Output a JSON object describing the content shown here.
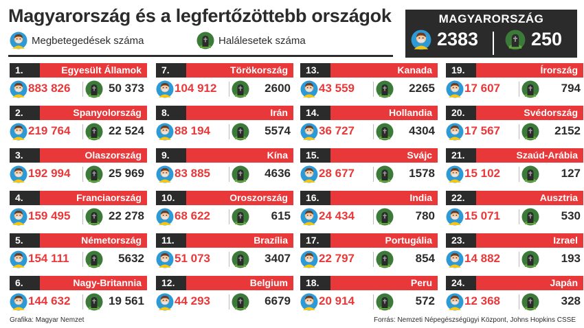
{
  "title": "Magyarország és a legfertőzöttebb országok",
  "legend": {
    "cases_label": "Megbetegedések száma",
    "deaths_label": "Halálesetek száma"
  },
  "hungary": {
    "title": "MAGYARORSZÁG",
    "cases": "2383",
    "deaths": "250"
  },
  "colors": {
    "accent_red": "#e8383a",
    "dark": "#2b2b2b",
    "person_icon_bg": "#2d9ad6",
    "grave_icon_bg": "#3c7a3a"
  },
  "icons": {
    "cases": "sick-person-icon",
    "deaths": "gravestone-icon"
  },
  "countries": [
    {
      "rank": "1.",
      "name": "Egyesült Államok",
      "cases": "883 826",
      "deaths": "50 373"
    },
    {
      "rank": "2.",
      "name": "Spanyolország",
      "cases": "219 764",
      "deaths": "22 524"
    },
    {
      "rank": "3.",
      "name": "Olaszország",
      "cases": "192 994",
      "deaths": "25 969"
    },
    {
      "rank": "4.",
      "name": "Franciaország",
      "cases": "159 495",
      "deaths": "22 278"
    },
    {
      "rank": "5.",
      "name": "Németország",
      "cases": "154 111",
      "deaths": "5632"
    },
    {
      "rank": "6.",
      "name": "Nagy-Britannia",
      "cases": "144 632",
      "deaths": "19 561"
    },
    {
      "rank": "7.",
      "name": "Törökország",
      "cases": "104 912",
      "deaths": "2600"
    },
    {
      "rank": "8.",
      "name": "Irán",
      "cases": "88 194",
      "deaths": "5574"
    },
    {
      "rank": "9.",
      "name": "Kína",
      "cases": "83 885",
      "deaths": "4636"
    },
    {
      "rank": "10.",
      "name": "Oroszország",
      "cases": "68 622",
      "deaths": "615"
    },
    {
      "rank": "11.",
      "name": "Brazília",
      "cases": "51 073",
      "deaths": "3407"
    },
    {
      "rank": "12.",
      "name": "Belgium",
      "cases": "44 293",
      "deaths": "6679"
    },
    {
      "rank": "13.",
      "name": "Kanada",
      "cases": "43 559",
      "deaths": "2265"
    },
    {
      "rank": "14.",
      "name": "Hollandia",
      "cases": "36 727",
      "deaths": "4304"
    },
    {
      "rank": "15.",
      "name": "Svájc",
      "cases": "28 677",
      "deaths": "1578"
    },
    {
      "rank": "16.",
      "name": "India",
      "cases": "24 434",
      "deaths": "780"
    },
    {
      "rank": "17.",
      "name": "Portugália",
      "cases": "22 797",
      "deaths": "854"
    },
    {
      "rank": "18.",
      "name": "Peru",
      "cases": "20 914",
      "deaths": "572"
    },
    {
      "rank": "19.",
      "name": "Írország",
      "cases": "17 607",
      "deaths": "794"
    },
    {
      "rank": "20.",
      "name": "Svédország",
      "cases": "17 567",
      "deaths": "2152"
    },
    {
      "rank": "21.",
      "name": "Szaúd-Arábia",
      "cases": "15 102",
      "deaths": "127"
    },
    {
      "rank": "22.",
      "name": "Ausztria",
      "cases": "15 071",
      "deaths": "530"
    },
    {
      "rank": "23.",
      "name": "Izrael",
      "cases": "14 882",
      "deaths": "193"
    },
    {
      "rank": "24.",
      "name": "Japán",
      "cases": "12 368",
      "deaths": "328"
    }
  ],
  "footer": {
    "left": "Grafika: Magyar Nemzet",
    "right": "Forrás: Nemzeti Népegészségügyi Központ, Johns Hopkins CSSE"
  }
}
